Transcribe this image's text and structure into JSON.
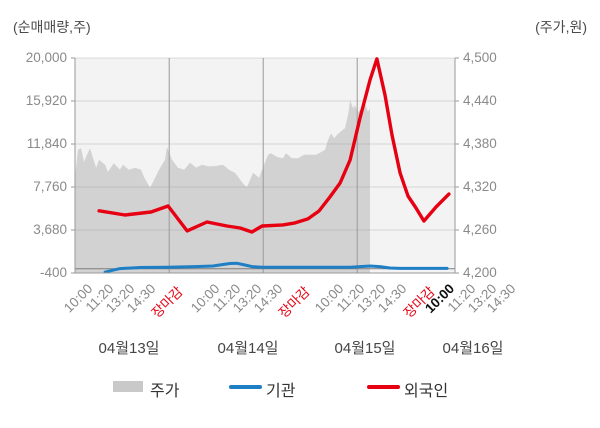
{
  "axes": {
    "left_title": "(순매매량,주)",
    "right_title": "(주가,원)",
    "left_ticks": [
      "20,000",
      "15,920",
      "11,840",
      "7,760",
      "3,680",
      "-400"
    ],
    "right_ticks": [
      "4,500",
      "4,440",
      "4,380",
      "4,320",
      "4,260",
      "4,200"
    ]
  },
  "x_axis": {
    "time_labels": [
      {
        "text": "10:00",
        "style": "normal"
      },
      {
        "text": "11:20",
        "style": "normal"
      },
      {
        "text": "13:20",
        "style": "normal"
      },
      {
        "text": "14:30",
        "style": "normal"
      },
      {
        "text": "장마감",
        "style": "close"
      },
      {
        "text": "10:00",
        "style": "normal"
      },
      {
        "text": "11:20",
        "style": "normal"
      },
      {
        "text": "13:20",
        "style": "normal"
      },
      {
        "text": "14:30",
        "style": "normal"
      },
      {
        "text": "장마감",
        "style": "close"
      },
      {
        "text": "10:00",
        "style": "normal"
      },
      {
        "text": "11:20",
        "style": "normal"
      },
      {
        "text": "13:20",
        "style": "normal"
      },
      {
        "text": "14:30",
        "style": "normal"
      },
      {
        "text": "장마감",
        "style": "close"
      },
      {
        "text": "10:00",
        "style": "now"
      },
      {
        "text": "11:20",
        "style": "normal"
      },
      {
        "text": "13:20",
        "style": "normal"
      },
      {
        "text": "14:30",
        "style": "normal"
      }
    ],
    "date_labels": [
      "04월13일",
      "04월14일",
      "04월15일",
      "04월16일"
    ]
  },
  "legend": {
    "items": [
      {
        "label": "주가",
        "swatch": "area",
        "color": "#c9c9c9"
      },
      {
        "label": "기관",
        "swatch": "line",
        "color": "#1e7fc4"
      },
      {
        "label": "외국인",
        "swatch": "line",
        "color": "#e60012"
      }
    ]
  },
  "colors": {
    "plot_bg": "#f3f3f3",
    "price_fill": "#d2d2d2",
    "institution": "#1e7fc4",
    "foreigner": "#e60012",
    "grid": "rgba(140,140,140,0.28)",
    "day_divider": "#9a9a9a",
    "axis": "#9a9a9a",
    "zero_line": "#7d7d7d"
  },
  "chart_data": {
    "type": "line+area",
    "title": "외국인·기관 순매매량과 주가 추이",
    "days": [
      "04월13일",
      "04월14일",
      "04월15일",
      "04월16일"
    ],
    "times_per_day": [
      "10:00",
      "11:20",
      "13:20",
      "14:30",
      "장마감"
    ],
    "x_unit": "tick index: 0 = 04월13일 10:00, one unit per intraday tick (5 per day incl. 장마감); day4 has 4 labeled ticks",
    "left_axis": {
      "label": "순매매량(주)",
      "min": -400,
      "max": 20000,
      "ticks": [
        20000,
        15920,
        11840,
        7760,
        3680,
        -400
      ]
    },
    "right_axis": {
      "label": "주가(원)",
      "min": 4200,
      "max": 4500,
      "ticks": [
        4500,
        4440,
        4380,
        4320,
        4260,
        4200
      ]
    },
    "grid": {
      "horizontal": true,
      "vertical_day_dividers_at_index": [
        4,
        9,
        14
      ]
    },
    "legend_position": "bottom",
    "series": {
      "price": {
        "name": "주가",
        "axis": "right",
        "type": "area",
        "color": "#d2d2d2",
        "points": [
          [
            -1.01,
            4334
          ],
          [
            -0.85,
            4372
          ],
          [
            -0.69,
            4374
          ],
          [
            -0.53,
            4355
          ],
          [
            -0.37,
            4365
          ],
          [
            -0.21,
            4374
          ],
          [
            -0.05,
            4360
          ],
          [
            0.11,
            4347
          ],
          [
            0.27,
            4358
          ],
          [
            0.59,
            4351
          ],
          [
            0.74,
            4341
          ],
          [
            1.06,
            4353
          ],
          [
            1.38,
            4344
          ],
          [
            1.54,
            4351
          ],
          [
            1.86,
            4344
          ],
          [
            2.18,
            4347
          ],
          [
            2.5,
            4344
          ],
          [
            2.66,
            4334
          ],
          [
            2.98,
            4319
          ],
          [
            3.14,
            4327
          ],
          [
            3.46,
            4344
          ],
          [
            3.78,
            4358
          ],
          [
            3.88,
            4376
          ],
          [
            4.15,
            4358
          ],
          [
            4.47,
            4347
          ],
          [
            4.79,
            4344
          ],
          [
            5.11,
            4354
          ],
          [
            5.43,
            4347
          ],
          [
            5.74,
            4351
          ],
          [
            6.06,
            4349
          ],
          [
            6.38,
            4349
          ],
          [
            6.86,
            4351
          ],
          [
            7.18,
            4344
          ],
          [
            7.5,
            4340
          ],
          [
            7.98,
            4323
          ],
          [
            8.14,
            4320
          ],
          [
            8.46,
            4340
          ],
          [
            8.78,
            4333
          ],
          [
            8.94,
            4344
          ],
          [
            9.26,
            4365
          ],
          [
            9.41,
            4367
          ],
          [
            9.73,
            4362
          ],
          [
            10.05,
            4360
          ],
          [
            10.21,
            4367
          ],
          [
            10.53,
            4360
          ],
          [
            10.85,
            4360
          ],
          [
            11.17,
            4365
          ],
          [
            11.49,
            4365
          ],
          [
            11.81,
            4365
          ],
          [
            11.97,
            4367
          ],
          [
            12.29,
            4372
          ],
          [
            12.45,
            4386
          ],
          [
            12.61,
            4395
          ],
          [
            12.77,
            4388
          ],
          [
            12.93,
            4393
          ],
          [
            13.24,
            4400
          ],
          [
            13.35,
            4402
          ],
          [
            13.51,
            4420
          ],
          [
            13.62,
            4441
          ],
          [
            13.78,
            4430
          ],
          [
            13.88,
            4434
          ],
          [
            14.04,
            4425
          ],
          [
            14.15,
            4427
          ],
          [
            14.31,
            4434
          ],
          [
            14.41,
            4437
          ],
          [
            14.57,
            4425
          ],
          [
            14.68,
            4430
          ]
        ]
      },
      "institution": {
        "name": "기관",
        "axis": "left",
        "type": "line",
        "color": "#1e7fc4",
        "points": [
          [
            0.59,
            -310
          ],
          [
            1.38,
            20
          ],
          [
            2.45,
            120
          ],
          [
            3.88,
            140
          ],
          [
            5.37,
            210
          ],
          [
            6.33,
            260
          ],
          [
            6.81,
            400
          ],
          [
            7.23,
            500
          ],
          [
            7.61,
            520
          ],
          [
            8.03,
            360
          ],
          [
            8.4,
            210
          ],
          [
            8.94,
            140
          ],
          [
            10.96,
            140
          ],
          [
            13.62,
            140
          ],
          [
            14.15,
            210
          ],
          [
            14.68,
            260
          ],
          [
            15.21,
            210
          ],
          [
            15.74,
            70
          ],
          [
            16.28,
            40
          ],
          [
            17.87,
            40
          ],
          [
            18.78,
            40
          ]
        ]
      },
      "foreigner": {
        "name": "외국인",
        "axis": "left",
        "type": "line",
        "color": "#e60012",
        "points": [
          [
            0.27,
            5500
          ],
          [
            1.65,
            5100
          ],
          [
            3.03,
            5390
          ],
          [
            3.94,
            5960
          ],
          [
            4.95,
            3590
          ],
          [
            6.01,
            4440
          ],
          [
            7.07,
            4060
          ],
          [
            7.77,
            3870
          ],
          [
            8.4,
            3490
          ],
          [
            8.94,
            4060
          ],
          [
            10.05,
            4160
          ],
          [
            10.69,
            4350
          ],
          [
            11.38,
            4730
          ],
          [
            11.97,
            5480
          ],
          [
            12.55,
            6810
          ],
          [
            13.09,
            8140
          ],
          [
            13.62,
            10320
          ],
          [
            14.15,
            14310
          ],
          [
            14.68,
            17910
          ],
          [
            15.05,
            19910
          ],
          [
            15.48,
            16490
          ],
          [
            15.85,
            12690
          ],
          [
            16.28,
            9090
          ],
          [
            16.7,
            6910
          ],
          [
            17.13,
            5770
          ],
          [
            17.55,
            4530
          ],
          [
            18.19,
            5860
          ],
          [
            18.88,
            7090
          ]
        ]
      }
    }
  }
}
